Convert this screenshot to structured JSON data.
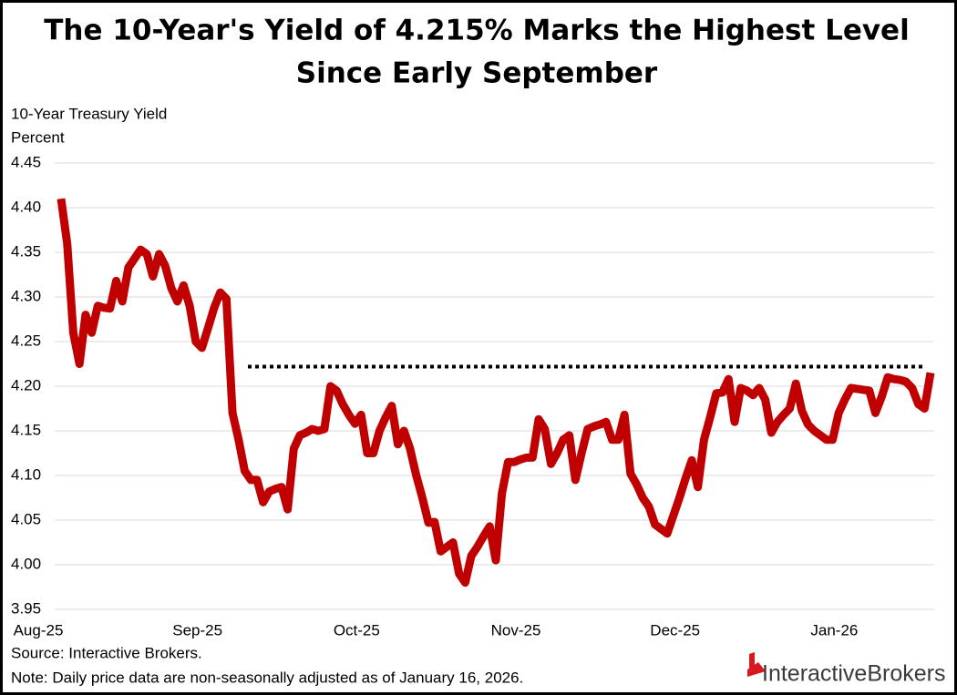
{
  "chart_data": {
    "type": "line",
    "title": "The 10-Year's Yield of 4.215% Marks the Highest Level",
    "subtitle": "Since Early September",
    "y_label": "10-Year Treasury Yield",
    "y_unit": "Percent",
    "source": "Source: Interactive Brokers.",
    "note": "Note: Daily price data are non-seasonally adjusted as of January 16, 2026.",
    "logo": "InteractiveBrokers",
    "ylim": [
      3.95,
      4.45
    ],
    "yticks": [
      3.95,
      {
        "value": 4.0,
        "label": "4.00"
      },
      4.05,
      {
        "value": 4.1,
        "label": "4.10"
      },
      4.15,
      {
        "value": 4.2,
        "label": "4.20"
      },
      4.25,
      {
        "value": 4.3,
        "label": "4.30"
      },
      4.35,
      {
        "value": 4.4,
        "label": "4.40"
      },
      4.45
    ],
    "grid": true,
    "reference_line": 4.222,
    "categories": [
      "Aug-25",
      null,
      null,
      null,
      null,
      null,
      null,
      null,
      null,
      null,
      null,
      null,
      null,
      null,
      null,
      null,
      null,
      null,
      null,
      null,
      null,
      null,
      null,
      null,
      null,
      null,
      "Sep-25",
      null,
      null,
      null,
      null,
      null,
      null,
      null,
      null,
      null,
      null,
      null,
      null,
      null,
      null,
      null,
      null,
      null,
      null,
      null,
      null,
      null,
      null,
      null,
      null,
      null,
      "Oct-25",
      null,
      null,
      null,
      null,
      null,
      null,
      null,
      null,
      null,
      null,
      null,
      null,
      null,
      null,
      null,
      null,
      null,
      null,
      null,
      null,
      null,
      null,
      null,
      null,
      null,
      "Nov-25",
      null,
      null,
      null,
      null,
      null,
      null,
      null,
      null,
      null,
      null,
      null,
      null,
      null,
      null,
      null,
      null,
      null,
      null,
      null,
      null,
      null,
      null,
      null,
      null,
      null,
      "Dec-25",
      null,
      null,
      null,
      null,
      null,
      null,
      null,
      null,
      null,
      null,
      null,
      null,
      null,
      null,
      null,
      null,
      null,
      null,
      null,
      null,
      null,
      null,
      null,
      null,
      null,
      "Jan-26",
      null,
      null,
      null,
      null,
      null,
      null,
      null,
      null,
      null,
      null,
      null,
      null
    ],
    "series": [
      {
        "name": "10-Year Treasury Yield",
        "color": "#c00000",
        "values": [
          4.41,
          4.36,
          4.26,
          4.225,
          4.28,
          4.26,
          4.29,
          4.288,
          4.287,
          4.318,
          4.295,
          4.333,
          4.343,
          4.353,
          4.348,
          4.323,
          4.348,
          4.335,
          4.31,
          4.295,
          4.313,
          4.29,
          4.25,
          4.243,
          4.265,
          4.288,
          4.305,
          4.298,
          4.17,
          4.14,
          4.105,
          4.095,
          4.095,
          4.07,
          4.082,
          4.085,
          4.087,
          4.062,
          4.13,
          4.145,
          4.148,
          4.152,
          4.15,
          4.152,
          4.2,
          4.195,
          4.18,
          4.168,
          4.158,
          4.168,
          4.125,
          4.125,
          4.15,
          4.165,
          4.178,
          4.135,
          4.15,
          4.13,
          4.1,
          4.075,
          4.047,
          4.048,
          4.015,
          4.02,
          4.025,
          3.99,
          3.98,
          4.01,
          4.02,
          4.032,
          4.043,
          4.005,
          4.08,
          4.115,
          4.115,
          4.118,
          4.12,
          4.12,
          4.163,
          4.152,
          4.113,
          4.125,
          4.14,
          4.145,
          4.095,
          4.125,
          4.152,
          4.155,
          4.157,
          4.16,
          4.14,
          4.14,
          4.168,
          4.102,
          4.09,
          4.075,
          4.065,
          4.045,
          4.04,
          4.035,
          4.055,
          4.075,
          4.097,
          4.117,
          4.087,
          4.14,
          4.165,
          4.192,
          4.193,
          4.208,
          4.16,
          4.198,
          4.195,
          4.19,
          4.198,
          4.185,
          4.148,
          4.16,
          4.168,
          4.175,
          4.203,
          4.172,
          4.157,
          4.15,
          4.145,
          4.14,
          4.14,
          4.17,
          4.185,
          4.198,
          4.197,
          4.196,
          4.195,
          4.17,
          4.188,
          4.21,
          4.208,
          4.207,
          4.205,
          4.198,
          4.18,
          4.175,
          4.215
        ]
      }
    ]
  }
}
